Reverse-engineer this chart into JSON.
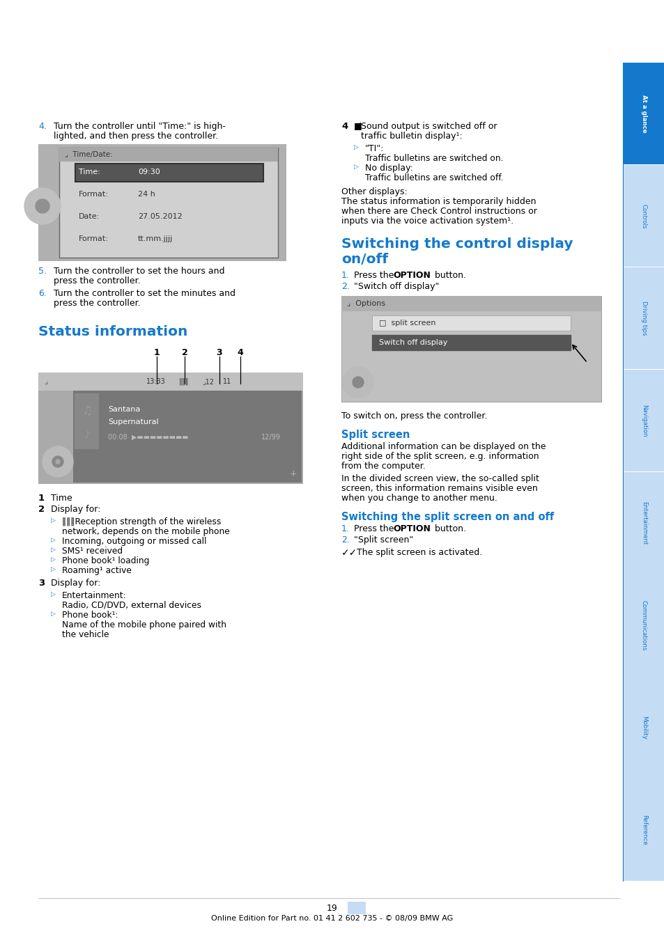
{
  "page_width": 9.54,
  "page_height": 13.5,
  "dpi": 100,
  "bg_color": "#ffffff",
  "blue": "#1479CC",
  "light_blue": "#C5DCF5",
  "heading_color": "#1479CC",
  "page_number": "19",
  "footer_text": "Online Edition for Part no. 01 41 2 602 735 - © 08/09 BMW AG",
  "sidebar_labels": [
    "At a glance",
    "Controls",
    "Driving tips",
    "Navigation",
    "Entertainment",
    "Communications",
    "Mobility",
    "Reference"
  ]
}
